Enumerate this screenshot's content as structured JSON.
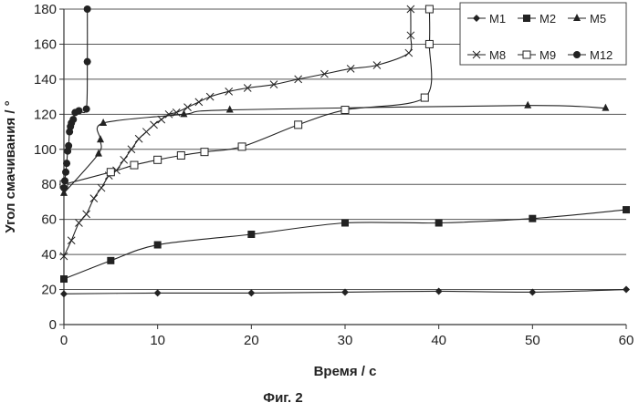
{
  "chart_data": {
    "type": "line",
    "title": "",
    "xlabel": "Время / с",
    "ylabel": "Угол смачивания / °",
    "xlim": [
      0,
      60
    ],
    "ylim": [
      0,
      180
    ],
    "xticks": [
      "0",
      "10",
      "20",
      "30",
      "40",
      "50",
      "60"
    ],
    "yticks": [
      "0",
      "20",
      "40",
      "60",
      "80",
      "100",
      "120",
      "140",
      "160",
      "180"
    ],
    "grid": "horizontal",
    "legend_position": "top-right",
    "series": [
      {
        "name": "M1",
        "marker": "diamond",
        "x": [
          0,
          10,
          20,
          30,
          40,
          50,
          60
        ],
        "y": [
          17.5,
          18,
          18,
          18.5,
          19,
          18.5,
          20
        ]
      },
      {
        "name": "M2",
        "marker": "square",
        "x": [
          0,
          5,
          10,
          20,
          30,
          40,
          50,
          60
        ],
        "y": [
          26,
          36.5,
          45.5,
          51.5,
          58,
          58,
          60.5,
          65.5
        ]
      },
      {
        "name": "M5",
        "marker": "triangle",
        "x": [
          0,
          3.7,
          3.9,
          4.2,
          12.8,
          17.7,
          49.5,
          57.8
        ],
        "y": [
          75,
          97.5,
          105.5,
          115,
          120,
          122.5,
          125,
          123.5
        ]
      },
      {
        "name": "M8",
        "marker": "x",
        "x": [
          0,
          0.8,
          1.6,
          2.4,
          3.2,
          4,
          4.8,
          5.6,
          6.4,
          7.2,
          8,
          8.8,
          9.6,
          10.4,
          11.2,
          12,
          13.2,
          14.4,
          15.6,
          17.6,
          19.6,
          22.4,
          25,
          27.8,
          30.6,
          33.4,
          36.8,
          37,
          37
        ],
        "y": [
          39,
          48,
          58,
          63,
          72,
          78,
          85,
          88,
          94,
          100,
          106,
          110,
          114,
          117,
          120,
          121,
          124,
          127,
          130,
          133,
          135,
          137,
          140,
          143,
          146,
          148,
          155,
          165,
          180
        ]
      },
      {
        "name": "M9",
        "marker": "square-open",
        "x": [
          0,
          5,
          7.5,
          10,
          12.5,
          15,
          19,
          25,
          30,
          38.5,
          39,
          39
        ],
        "y": [
          80,
          87,
          91,
          94,
          96.5,
          98.5,
          101.5,
          114,
          122.5,
          129.5,
          160,
          180
        ]
      },
      {
        "name": "M12",
        "marker": "circle",
        "x": [
          0,
          0.1,
          0.2,
          0.3,
          0.4,
          0.5,
          0.6,
          0.7,
          0.8,
          1.0,
          1.2,
          1.6,
          2.4,
          2.5,
          2.5
        ],
        "y": [
          78,
          82,
          87,
          92,
          99,
          102,
          110,
          113,
          115,
          117,
          121,
          122,
          123,
          150,
          180
        ]
      }
    ]
  },
  "figure_caption": "Фиг. 2"
}
